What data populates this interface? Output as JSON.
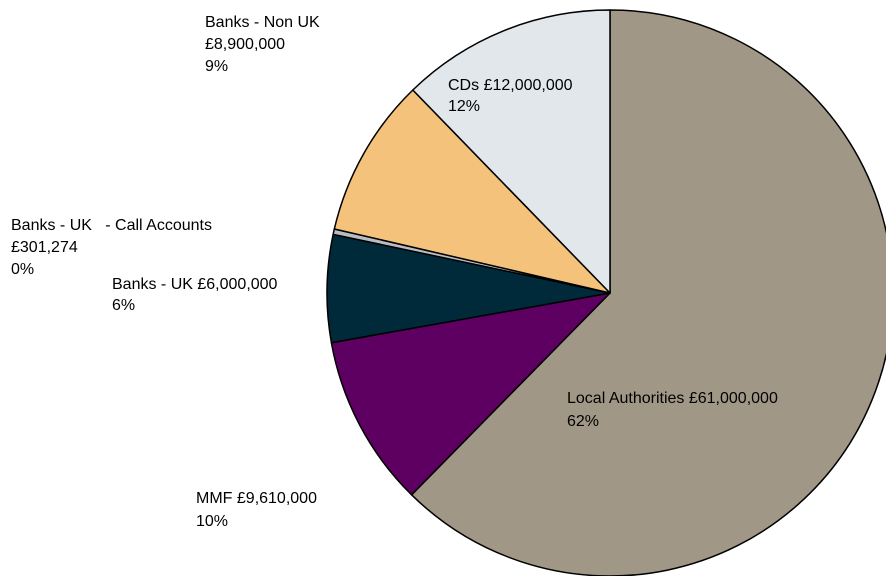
{
  "chart_data": {
    "type": "pie",
    "start_angle_deg": 0,
    "direction": "clockwise",
    "slices": [
      {
        "name": "Local Authorities",
        "amount_label": "£61,000,000",
        "value": 61000000,
        "percent_label": "62%",
        "color": "#A19786"
      },
      {
        "name": "MMF",
        "amount_label": "£9,610,000",
        "value": 9610000,
        "percent_label": "10%",
        "color": "#5E0062"
      },
      {
        "name": "Banks - UK",
        "amount_label": "£6,000,000",
        "value": 6000000,
        "percent_label": "6%",
        "color": "#002A3A"
      },
      {
        "name": "Banks - UK   - Call Accounts",
        "amount_label": "£301,274",
        "value": 301274,
        "percent_label": "0%",
        "color": "#B7BDC2"
      },
      {
        "name": "Banks - Non UK",
        "amount_label": "£8,900,000",
        "value": 8900000,
        "percent_label": "9%",
        "color": "#F4C27A"
      },
      {
        "name": "CDs",
        "amount_label": "£12,000,000",
        "value": 12000000,
        "percent_label": "12%",
        "color": "#E1E7EB"
      }
    ]
  }
}
